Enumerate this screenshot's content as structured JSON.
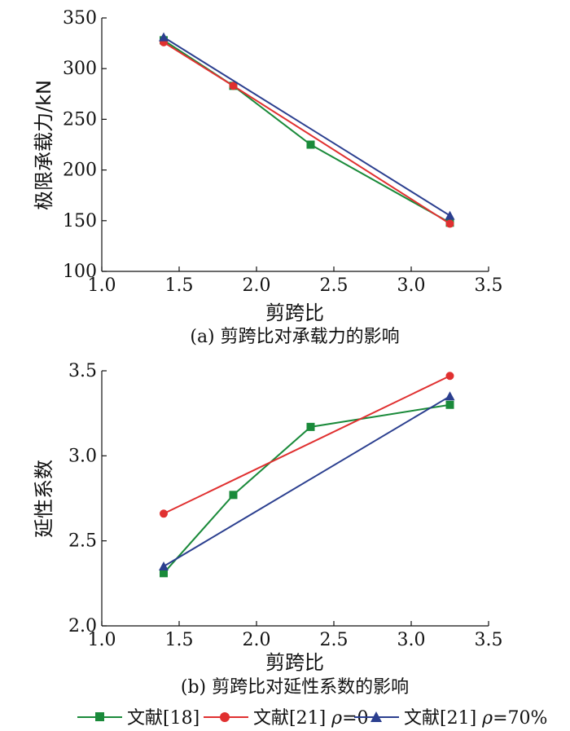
{
  "chart_data": [
    {
      "type": "line",
      "ylabel": "极限承载力/kN",
      "xlabel": "剪跨比",
      "caption": "(a) 剪跨比对承载力的影响",
      "xlim": [
        1.0,
        3.5
      ],
      "ylim": [
        100,
        350
      ],
      "xticks": [
        "1.0",
        "1.5",
        "2.0",
        "2.5",
        "3.0",
        "3.5"
      ],
      "yticks": [
        "100",
        "150",
        "200",
        "250",
        "300",
        "350"
      ],
      "grid": false,
      "series": [
        {
          "name": "文献[18]",
          "color": "#1a8a3a",
          "marker": "square",
          "x": [
            1.4,
            1.85,
            2.35,
            3.25
          ],
          "y": [
            328,
            283,
            225,
            148
          ]
        },
        {
          "name": "文献[21] ρ=0",
          "color": "#e03030",
          "marker": "circle",
          "x": [
            1.4,
            1.85,
            3.25
          ],
          "y": [
            326,
            283,
            147
          ]
        },
        {
          "name": "文献[21] ρ=70%",
          "color": "#2b3f8f",
          "marker": "triangle",
          "x": [
            1.4,
            3.25
          ],
          "y": [
            331,
            155
          ]
        }
      ]
    },
    {
      "type": "line",
      "ylabel": "延性系数",
      "xlabel": "剪跨比",
      "caption": "(b) 剪跨比对延性系数的影响",
      "xlim": [
        1.0,
        3.5
      ],
      "ylim": [
        2.0,
        3.5
      ],
      "xticks": [
        "1.0",
        "1.5",
        "2.0",
        "2.5",
        "3.0",
        "3.5"
      ],
      "yticks": [
        "2.0",
        "2.5",
        "3.0",
        "3.5"
      ],
      "grid": false,
      "series": [
        {
          "name": "文献[18]",
          "color": "#1a8a3a",
          "marker": "square",
          "x": [
            1.4,
            1.85,
            2.35,
            3.25
          ],
          "y": [
            2.31,
            2.77,
            3.17,
            3.3
          ]
        },
        {
          "name": "文献[21] ρ=0",
          "color": "#e03030",
          "marker": "circle",
          "x": [
            1.4,
            3.25
          ],
          "y": [
            2.66,
            3.47
          ]
        },
        {
          "name": "文献[21] ρ=70%",
          "color": "#2b3f8f",
          "marker": "triangle",
          "x": [
            1.4,
            3.25
          ],
          "y": [
            2.35,
            3.35
          ]
        }
      ]
    }
  ],
  "legend": {
    "placement": "bottom",
    "items": [
      {
        "prefix": "文献[18]",
        "rho": "",
        "suffix": ""
      },
      {
        "prefix": "文献[21] ",
        "rho": "ρ",
        "suffix": "=0"
      },
      {
        "prefix": "文献[21] ",
        "rho": "ρ",
        "suffix": "=70%"
      }
    ]
  }
}
